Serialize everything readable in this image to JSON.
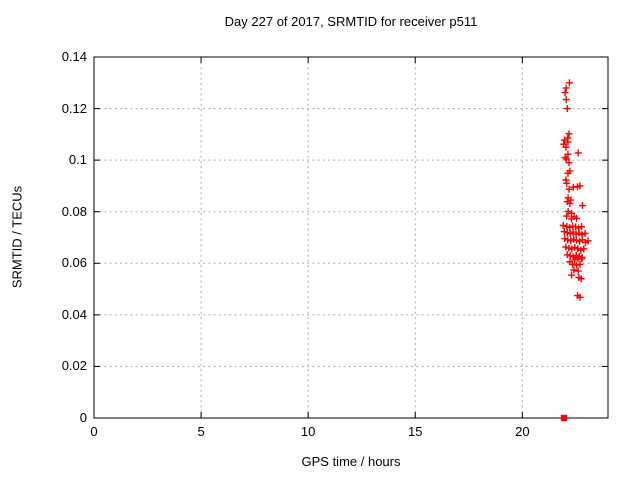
{
  "colors": {
    "marker": "#ff0000",
    "grid": "#a8a8a8",
    "axis": "#000000",
    "background": "#ffffff"
  },
  "chart_data": {
    "type": "scatter",
    "title": "Day 227 of 2017, SRMTID for receiver p511",
    "xlabel": "GPS time / hours",
    "ylabel": "SRMTID / TECUs",
    "xlim": [
      0,
      24
    ],
    "ylim": [
      0,
      0.14
    ],
    "x_ticks": [
      0,
      5,
      10,
      15,
      20
    ],
    "x_tick_labels": [
      "0",
      "5",
      "10",
      "15",
      "20"
    ],
    "y_ticks": [
      0,
      0.02,
      0.04,
      0.06,
      0.08,
      0.1,
      0.12,
      0.14
    ],
    "y_tick_labels": [
      "0",
      "0.02",
      "0.04",
      "0.06",
      "0.08",
      "0.1",
      "0.12",
      "0.14"
    ],
    "grid": true,
    "legend": "none",
    "series": [
      {
        "name": "srmtid-points",
        "marker": "plus",
        "color": "#ff0000",
        "points": [
          [
            22.2,
            0.13
          ],
          [
            22.05,
            0.128
          ],
          [
            22.0,
            0.1262
          ],
          [
            22.05,
            0.1235
          ],
          [
            22.1,
            0.12
          ],
          [
            22.18,
            0.1102
          ],
          [
            22.12,
            0.1085
          ],
          [
            21.97,
            0.1078
          ],
          [
            22.13,
            0.107
          ],
          [
            21.93,
            0.1062
          ],
          [
            22.04,
            0.105
          ],
          [
            22.61,
            0.1028
          ],
          [
            22.13,
            0.1023
          ],
          [
            22.0,
            0.101
          ],
          [
            22.06,
            0.1004
          ],
          [
            22.18,
            0.099
          ],
          [
            22.22,
            0.0958
          ],
          [
            22.13,
            0.0949
          ],
          [
            22.04,
            0.0923
          ],
          [
            22.07,
            0.091
          ],
          [
            22.38,
            0.0895
          ],
          [
            22.58,
            0.0897
          ],
          [
            22.69,
            0.09
          ],
          [
            22.18,
            0.0887
          ],
          [
            22.14,
            0.0854
          ],
          [
            22.26,
            0.0845
          ],
          [
            22.1,
            0.0839
          ],
          [
            22.22,
            0.0832
          ],
          [
            22.81,
            0.0824
          ],
          [
            22.14,
            0.0801
          ],
          [
            22.3,
            0.0794
          ],
          [
            22.07,
            0.0783
          ],
          [
            22.42,
            0.0781
          ],
          [
            22.3,
            0.0772
          ],
          [
            22.53,
            0.0774
          ],
          [
            21.91,
            0.0747
          ],
          [
            22.08,
            0.0743
          ],
          [
            22.21,
            0.0739
          ],
          [
            22.35,
            0.0744
          ],
          [
            22.49,
            0.0741
          ],
          [
            22.63,
            0.0737
          ],
          [
            22.77,
            0.0742
          ],
          [
            21.96,
            0.0723
          ],
          [
            22.1,
            0.0719
          ],
          [
            22.24,
            0.0715
          ],
          [
            22.37,
            0.0721
          ],
          [
            22.51,
            0.0713
          ],
          [
            22.65,
            0.0717
          ],
          [
            22.79,
            0.0711
          ],
          [
            22.93,
            0.0716
          ],
          [
            21.98,
            0.0696
          ],
          [
            22.12,
            0.0691
          ],
          [
            22.26,
            0.0687
          ],
          [
            22.4,
            0.0693
          ],
          [
            22.53,
            0.0689
          ],
          [
            22.67,
            0.0685
          ],
          [
            22.81,
            0.0691
          ],
          [
            22.95,
            0.0681
          ],
          [
            23.07,
            0.0687
          ],
          [
            22.03,
            0.0663
          ],
          [
            22.17,
            0.0659
          ],
          [
            22.31,
            0.0655
          ],
          [
            22.45,
            0.0661
          ],
          [
            22.59,
            0.0657
          ],
          [
            22.73,
            0.0651
          ],
          [
            22.87,
            0.0656
          ],
          [
            22.1,
            0.0633
          ],
          [
            22.24,
            0.0629
          ],
          [
            22.38,
            0.0625
          ],
          [
            22.52,
            0.0631
          ],
          [
            22.66,
            0.0627
          ],
          [
            22.79,
            0.0623
          ],
          [
            22.22,
            0.0606
          ],
          [
            22.45,
            0.0613
          ],
          [
            22.6,
            0.0619
          ],
          [
            22.77,
            0.0617
          ],
          [
            22.34,
            0.0596
          ],
          [
            22.53,
            0.0593
          ],
          [
            22.69,
            0.0596
          ],
          [
            22.41,
            0.0574
          ],
          [
            22.61,
            0.057
          ],
          [
            22.3,
            0.0554
          ],
          [
            22.64,
            0.0545
          ],
          [
            22.75,
            0.054
          ],
          [
            22.58,
            0.0475
          ],
          [
            22.69,
            0.0468
          ]
        ]
      },
      {
        "name": "zero-axis-marker",
        "marker": "filled-square",
        "color": "#ff0000",
        "points": [
          [
            21.95,
            0.0
          ]
        ]
      }
    ]
  }
}
